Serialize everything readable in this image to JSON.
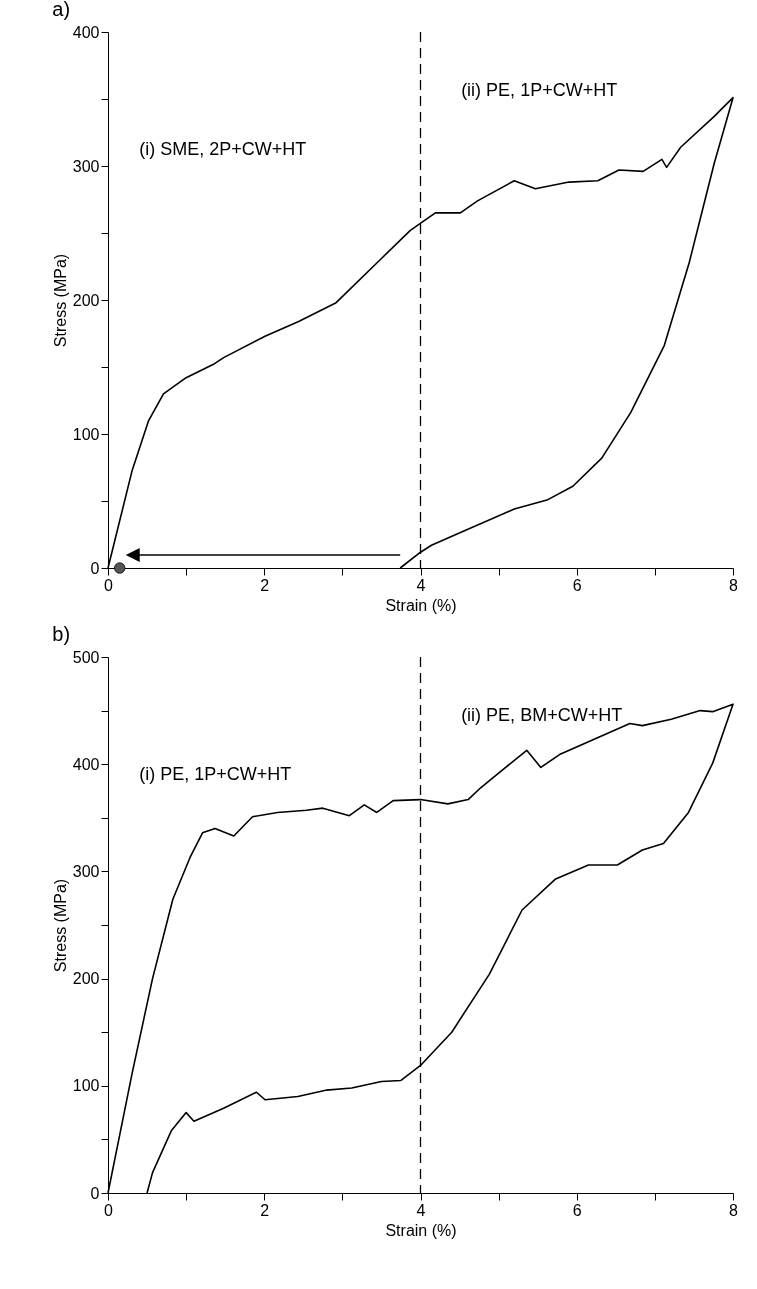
{
  "chart_data": [
    {
      "type": "line",
      "title": "a)",
      "xlabel": "Strain (%)",
      "ylabel": "Stress (MPa)",
      "xlim": [
        0,
        8
      ],
      "ylim": [
        0,
        400
      ],
      "xticks": [
        0,
        {
          "value": 1,
          "label": null
        },
        2,
        {
          "value": 3,
          "label": null
        },
        4,
        {
          "value": 5,
          "label": null
        },
        6,
        {
          "value": 7,
          "label": null
        },
        8
      ],
      "yticks": [
        0,
        {
          "value": 50,
          "label": null
        },
        100,
        {
          "value": 150,
          "label": null
        },
        200,
        {
          "value": 250,
          "label": null
        },
        300,
        {
          "value": 350,
          "label": null
        },
        400
      ],
      "grid": false,
      "legend": false,
      "series": [
        {
          "color": "#000000",
          "x": [
            0,
            0.31,
            0.52,
            0.71,
            1.0,
            1.35,
            1.48,
            2.01,
            2.44,
            2.92,
            3.5,
            3.87,
            4.19,
            4.51,
            4.73,
            5.2,
            5.47,
            5.9,
            6.27,
            6.54,
            6.85,
            7.09,
            7.15,
            7.33,
            7.76,
            8.0,
            7.76,
            7.44,
            7.12,
            6.69,
            6.32,
            5.95,
            5.63,
            5.2,
            4.57,
            4.14,
            3.98,
            3.74
          ],
          "values": [
            0,
            73,
            110,
            130,
            142,
            152,
            157,
            173,
            184,
            198,
            231,
            252,
            265,
            265,
            274,
            289,
            283,
            288,
            289,
            297,
            296,
            305,
            299,
            314,
            337,
            351,
            302,
            228,
            166,
            116,
            82,
            61,
            51,
            44,
            28,
            17,
            11,
            0
          ]
        },
        {
          "type": "scatter",
          "color": "#555555",
          "x": [
            0.15
          ],
          "values": [
            0
          ]
        }
      ],
      "ref_lines": [
        {
          "axis": "x",
          "value": 4,
          "line_style": "dashed"
        }
      ],
      "annotations": [
        "(i) SME, 2P+CW+HT",
        "(ii) PE, 1P+CW+HT"
      ]
    },
    {
      "type": "line",
      "title": "b)",
      "xlabel": "Strain (%)",
      "ylabel": "Stress (MPa)",
      "xlim": [
        0,
        8
      ],
      "ylim": [
        0,
        500
      ],
      "xticks": [
        0,
        {
          "value": 1,
          "label": null
        },
        2,
        {
          "value": 3,
          "label": null
        },
        4,
        {
          "value": 5,
          "label": null
        },
        6,
        {
          "value": 7,
          "label": null
        },
        8
      ],
      "yticks": [
        0,
        {
          "value": 50,
          "label": null
        },
        100,
        {
          "value": 150,
          "label": null
        },
        200,
        {
          "value": 250,
          "label": null
        },
        300,
        {
          "value": 350,
          "label": null
        },
        400,
        {
          "value": 450,
          "label": null
        },
        500
      ],
      "grid": false,
      "legend": false,
      "series": [
        {
          "color": "#000000",
          "x": [
            0,
            0.31,
            0.57,
            0.83,
            1.05,
            1.21,
            1.37,
            1.61,
            1.85,
            2.17,
            2.54,
            2.75,
            3.09,
            3.28,
            3.44,
            3.65,
            4.0,
            4.35,
            4.61,
            4.77,
            5.09,
            5.36,
            5.54,
            5.78,
            6.15,
            6.68,
            6.84,
            7.21,
            7.58,
            7.74,
            8.0,
            7.74,
            7.43,
            7.11,
            6.84,
            6.52,
            6.15,
            5.73,
            5.3,
            4.88,
            4.4,
            4.0,
            3.75,
            3.5,
            3.12,
            2.8,
            2.43,
            2.01,
            1.9,
            1.48,
            1.1,
            1.0,
            0.81,
            0.57,
            0.5
          ],
          "values": [
            0,
            112,
            200,
            274,
            313,
            336,
            340,
            333,
            351,
            355,
            357,
            359,
            352,
            362,
            355,
            366,
            367,
            363,
            367,
            378,
            397,
            413,
            397,
            409,
            421,
            438,
            436,
            442,
            450,
            449,
            456,
            401,
            355,
            326,
            320,
            306,
            306,
            293,
            264,
            204,
            150,
            119,
            105,
            104,
            98,
            96,
            90,
            87,
            94,
            79,
            67,
            75,
            58,
            19,
            0
          ]
        }
      ],
      "ref_lines": [
        {
          "axis": "x",
          "value": 4,
          "line_style": "dashed"
        }
      ],
      "annotations": [
        "(i) PE, 1P+CW+HT",
        "(ii) PE, BM+CW+HT"
      ]
    }
  ]
}
